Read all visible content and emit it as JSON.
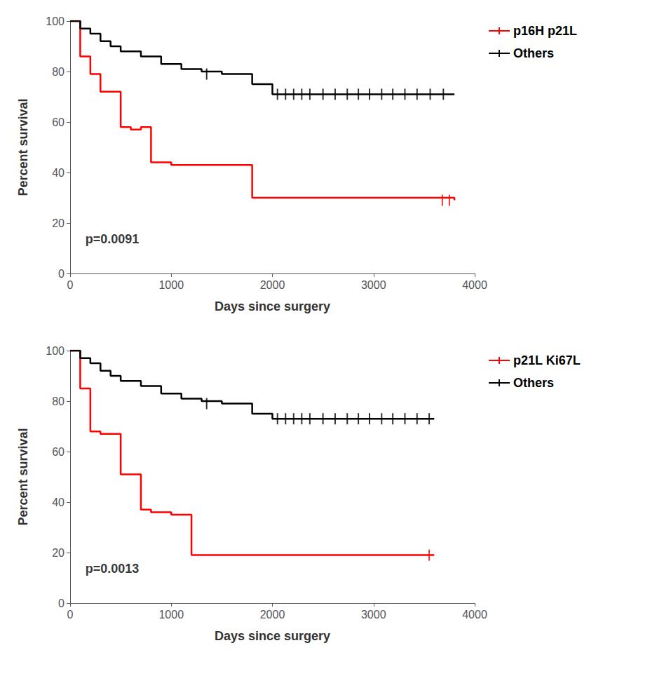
{
  "chart_data": [
    {
      "type": "step",
      "xlabel": "Days since surgery",
      "ylabel": "Percent survival",
      "xlim": [
        0,
        4000
      ],
      "ylim": [
        0,
        100
      ],
      "xticks": [
        0,
        1000,
        2000,
        3000,
        4000
      ],
      "yticks": [
        0,
        20,
        40,
        60,
        80,
        100
      ],
      "grid": false,
      "legend": "right",
      "annotations": [
        {
          "text": "p=0.0091",
          "x": 150,
          "y": 11
        }
      ],
      "series": [
        {
          "name": "p16H p21L",
          "color": "#ff0000",
          "x": [
            0,
            100,
            200,
            300,
            500,
            600,
            700,
            800,
            1000,
            1800,
            3800
          ],
          "values": [
            100,
            86,
            79,
            72,
            58,
            57,
            58,
            44,
            43,
            30,
            29
          ],
          "censor_x": [
            3680,
            3750
          ],
          "censor_y": [
            29,
            29
          ]
        },
        {
          "name": "Others",
          "color": "#000000",
          "x": [
            0,
            100,
            200,
            300,
            400,
            500,
            700,
            900,
            1100,
            1300,
            1500,
            1800,
            2000,
            3800
          ],
          "values": [
            100,
            97,
            95,
            92,
            90,
            88,
            86,
            83,
            81,
            80,
            79,
            75,
            71,
            71
          ],
          "censor_x": [
            1350,
            2050,
            2130,
            2210,
            2290,
            2370,
            2500,
            2620,
            2740,
            2850,
            2960,
            3080,
            3190,
            3310,
            3430,
            3560,
            3690
          ],
          "censor_y": [
            79,
            71,
            71,
            71,
            71,
            71,
            71,
            71,
            71,
            71,
            71,
            71,
            71,
            71,
            71,
            71,
            71
          ]
        }
      ]
    },
    {
      "type": "step",
      "xlabel": "Days since surgery",
      "ylabel": "Percent survival",
      "xlim": [
        0,
        4000
      ],
      "ylim": [
        0,
        100
      ],
      "xticks": [
        0,
        1000,
        2000,
        3000,
        4000
      ],
      "yticks": [
        0,
        20,
        40,
        60,
        80,
        100
      ],
      "grid": false,
      "legend": "right",
      "annotations": [
        {
          "text": "p=0.0013",
          "x": 150,
          "y": 11
        }
      ],
      "series": [
        {
          "name": "p21L Ki67L",
          "color": "#ff0000",
          "x": [
            0,
            100,
            200,
            300,
            500,
            700,
            800,
            1000,
            1200,
            1850,
            3600
          ],
          "values": [
            100,
            85,
            68,
            67,
            51,
            37,
            36,
            35,
            19,
            19,
            19
          ],
          "censor_x": [
            3550
          ],
          "censor_y": [
            19
          ]
        },
        {
          "name": "Others",
          "color": "#000000",
          "x": [
            0,
            100,
            200,
            300,
            400,
            500,
            700,
            900,
            1100,
            1300,
            1500,
            1800,
            2000,
            3600
          ],
          "values": [
            100,
            97,
            95,
            92,
            90,
            88,
            86,
            83,
            81,
            80,
            79,
            75,
            73,
            73
          ],
          "censor_x": [
            1350,
            2050,
            2130,
            2210,
            2290,
            2370,
            2500,
            2620,
            2740,
            2850,
            2960,
            3080,
            3190,
            3310,
            3430,
            3550
          ],
          "censor_y": [
            79,
            73,
            73,
            73,
            73,
            73,
            73,
            73,
            73,
            73,
            73,
            73,
            73,
            73,
            73,
            73
          ]
        }
      ]
    }
  ]
}
